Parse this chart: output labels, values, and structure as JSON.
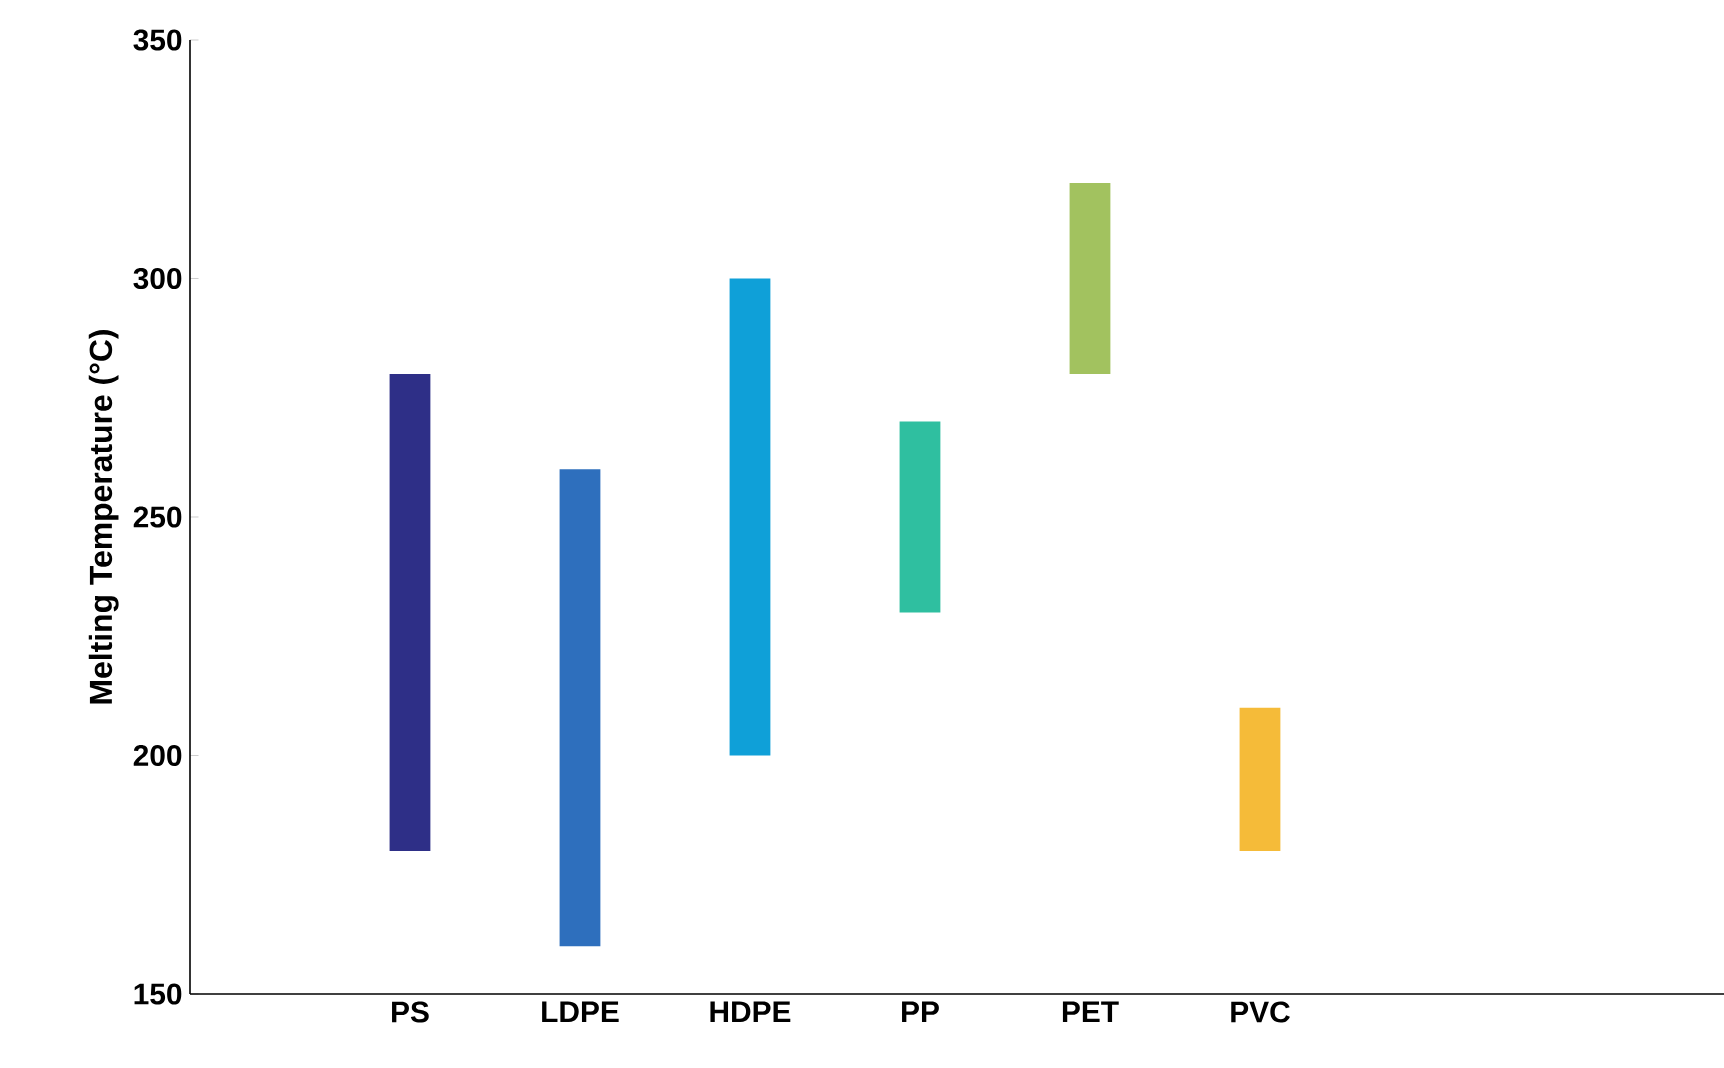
{
  "chart_data": {
    "type": "bar",
    "ylabel": "Melting Temperature (°C)",
    "categories": [
      "PS",
      "LDPE",
      "HDPE",
      "PP",
      "PET",
      "PVC"
    ],
    "base": [
      180,
      160,
      200,
      230,
      280,
      180
    ],
    "values": [
      100,
      100,
      100,
      40,
      40,
      30
    ],
    "colors": [
      "#2e2f87",
      "#2e6fbd",
      "#0fa0d8",
      "#2fbfa0",
      "#a2c25f",
      "#f5bb39"
    ],
    "ylim": [
      150,
      350
    ],
    "yticks": [
      150,
      200,
      250,
      300,
      350
    ]
  }
}
